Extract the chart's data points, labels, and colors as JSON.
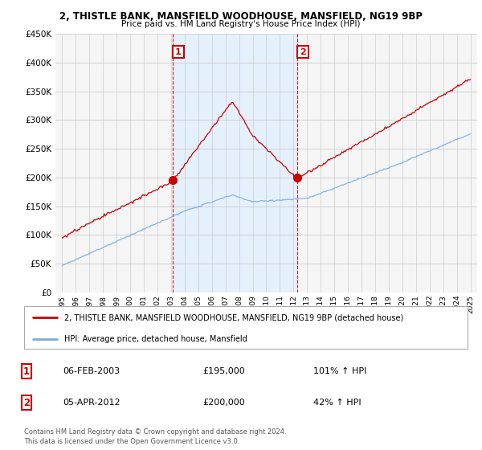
{
  "title1": "2, THISTLE BANK, MANSFIELD WOODHOUSE, MANSFIELD, NG19 9BP",
  "title2": "Price paid vs. HM Land Registry's House Price Index (HPI)",
  "legend_line1": "2, THISTLE BANK, MANSFIELD WOODHOUSE, MANSFIELD, NG19 9BP (detached house)",
  "legend_line2": "HPI: Average price, detached house, Mansfield",
  "annotation1_label": "1",
  "annotation1_date": "06-FEB-2003",
  "annotation1_price": "£195,000",
  "annotation1_hpi": "101% ↑ HPI",
  "annotation2_label": "2",
  "annotation2_date": "05-APR-2012",
  "annotation2_price": "£200,000",
  "annotation2_hpi": "42% ↑ HPI",
  "footer1": "Contains HM Land Registry data © Crown copyright and database right 2024.",
  "footer2": "This data is licensed under the Open Government Licence v3.0.",
  "sale1_x": 2003.1,
  "sale1_y": 195000,
  "sale2_x": 2012.25,
  "sale2_y": 200000,
  "red_color": "#cc0000",
  "blue_color": "#7aaddc",
  "shade_color": "#ddeeff",
  "dashed_color": "#cc0000",
  "background_color": "#ffffff",
  "plot_bg_color": "#f5f5f5",
  "grid_color": "#cccccc",
  "ylim": [
    0,
    450000
  ],
  "xlim_start": 1994.5,
  "xlim_end": 2025.5
}
